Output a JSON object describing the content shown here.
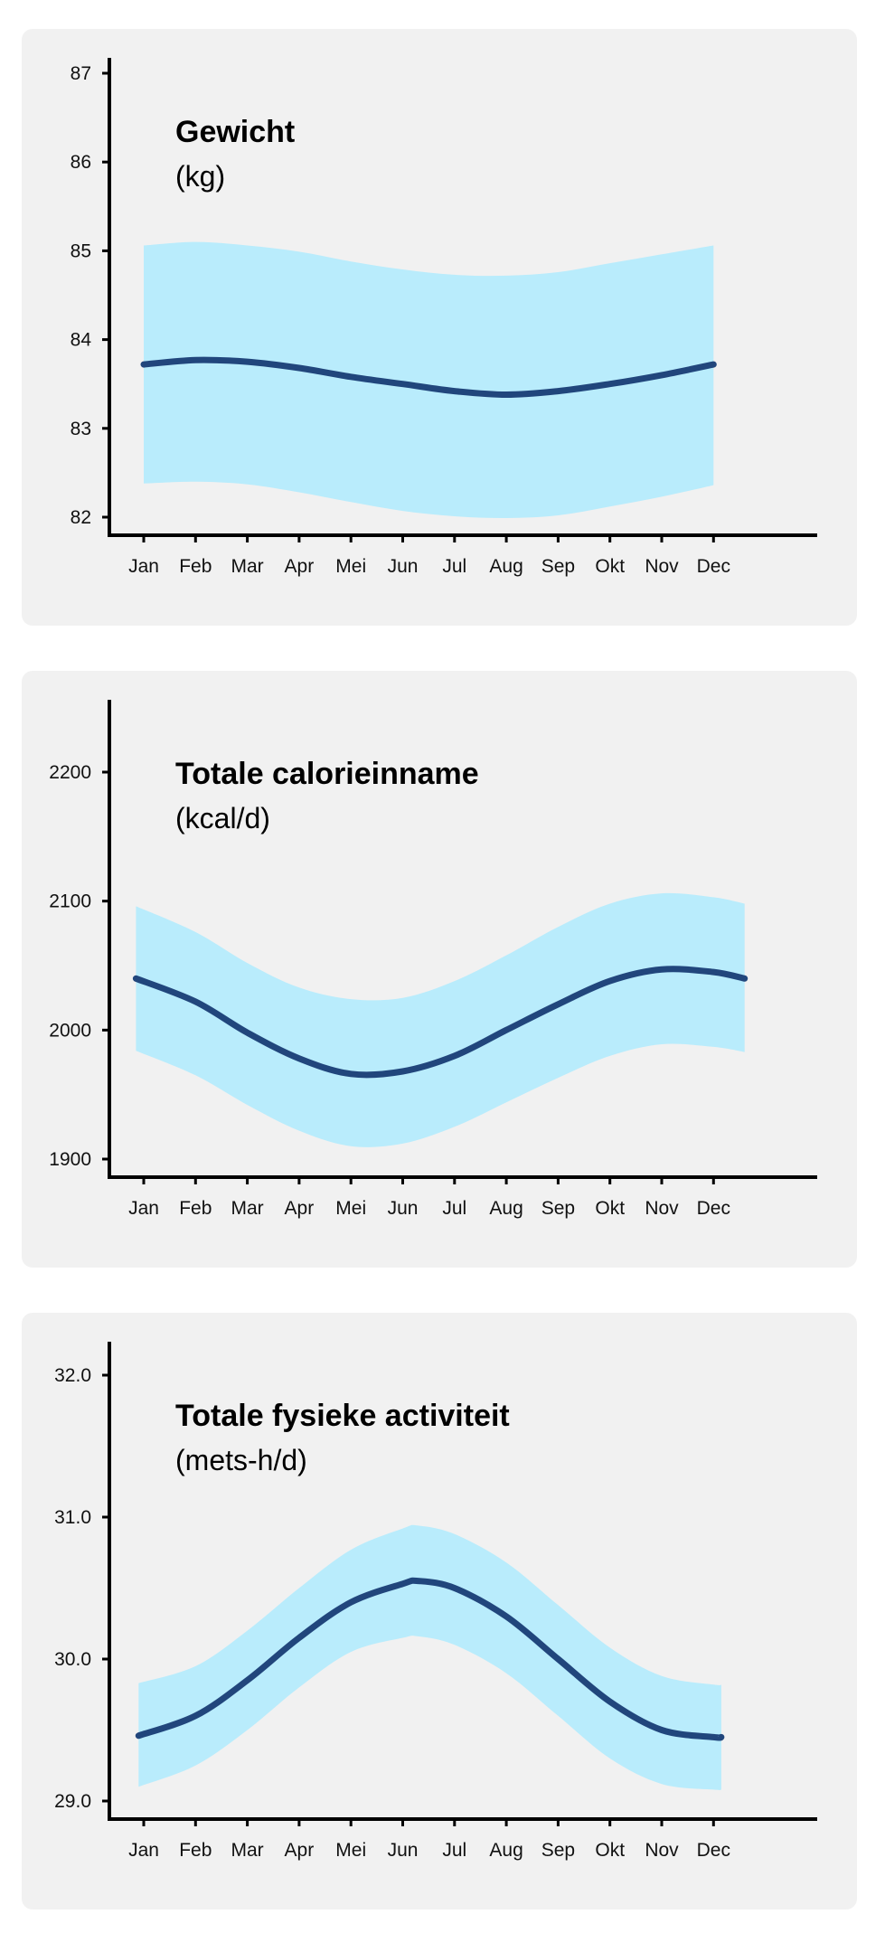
{
  "colors": {
    "panel": "#f1f1f1",
    "band": "#b9ecfc",
    "line": "#21467c",
    "axis": "#000000"
  },
  "chart_data": [
    {
      "type": "line",
      "title": "Gewicht",
      "unit": "(kg)",
      "xlabel": "",
      "ylabel": "",
      "categories": [
        "Jan",
        "Feb",
        "Mar",
        "Apr",
        "Mei",
        "Jun",
        "Jul",
        "Aug",
        "Sep",
        "Okt",
        "Nov",
        "Dec"
      ],
      "yticks": [
        82,
        83,
        84,
        85,
        86,
        87
      ],
      "ytick_labels": [
        "82",
        "83",
        "84",
        "85",
        "86",
        "87"
      ],
      "ylim": [
        82,
        87
      ],
      "x_extent": [
        0,
        11
      ],
      "mean": {
        "x": [
          0,
          1,
          2,
          3,
          4,
          5,
          6,
          7,
          8,
          9,
          10,
          11
        ],
        "y": [
          83.72,
          83.77,
          83.75,
          83.68,
          83.58,
          83.5,
          83.42,
          83.38,
          83.42,
          83.5,
          83.6,
          83.72
        ]
      },
      "band": {
        "x": [
          0,
          1,
          2,
          3,
          4,
          5,
          6,
          7,
          8,
          9,
          10,
          11
        ],
        "upper": [
          85.06,
          85.1,
          85.06,
          84.99,
          84.88,
          84.79,
          84.73,
          84.72,
          84.76,
          84.86,
          84.96,
          85.06
        ],
        "lower": [
          82.38,
          82.4,
          82.37,
          82.28,
          82.17,
          82.07,
          82.01,
          81.99,
          82.02,
          82.12,
          82.23,
          82.36
        ]
      },
      "grid": false,
      "legend": "none"
    },
    {
      "type": "line",
      "title": "Totale calorieinname",
      "unit": "(kcal/d)",
      "xlabel": "",
      "ylabel": "",
      "categories": [
        "Jan",
        "Feb",
        "Mar",
        "Apr",
        "Mei",
        "Jun",
        "Jul",
        "Aug",
        "Sep",
        "Okt",
        "Nov",
        "Dec"
      ],
      "yticks": [
        1900,
        2000,
        2100,
        2200
      ],
      "ytick_labels": [
        "1900",
        "2000",
        "2100",
        "2200"
      ],
      "ylim": [
        1900,
        2245
      ],
      "x_extent": [
        -0.15,
        11.6
      ],
      "mean": {
        "x": [
          -0.15,
          1,
          2,
          3,
          4,
          5,
          6,
          7,
          8,
          9,
          10,
          11,
          11.6
        ],
        "y": [
          2040,
          2022,
          1998,
          1978,
          1966,
          1968,
          1980,
          2000,
          2020,
          2038,
          2047,
          2045,
          2040
        ]
      },
      "band": {
        "x": [
          -0.15,
          1,
          2,
          3,
          4,
          5,
          6,
          7,
          8,
          9,
          10,
          11,
          11.6
        ],
        "upper": [
          2096,
          2076,
          2052,
          2033,
          2024,
          2025,
          2038,
          2058,
          2080,
          2098,
          2106,
          2103,
          2098
        ],
        "lower": [
          1984,
          1965,
          1942,
          1922,
          1910,
          1912,
          1925,
          1944,
          1963,
          1980,
          1989,
          1987,
          1983
        ]
      },
      "grid": false,
      "legend": "none"
    },
    {
      "type": "line",
      "title": "Totale fysieke activiteit",
      "unit": "(mets-h/d)",
      "xlabel": "",
      "ylabel": "",
      "categories": [
        "Jan",
        "Feb",
        "Mar",
        "Apr",
        "Mei",
        "Jun",
        "Jul",
        "Aug",
        "Sep",
        "Okt",
        "Nov",
        "Dec"
      ],
      "yticks": [
        29.0,
        30.0,
        31.0,
        32.0
      ],
      "ytick_labels": [
        "29.0",
        "30.0",
        "31.0",
        "32.0"
      ],
      "ylim": [
        29.0,
        32.0
      ],
      "x_extent": [
        -0.1,
        11.15
      ],
      "mean": {
        "x": [
          -0.1,
          1,
          2,
          3,
          4,
          5,
          5.3,
          6,
          7,
          8,
          9,
          10,
          11,
          11.15
        ],
        "y": [
          29.46,
          29.6,
          29.85,
          30.15,
          30.4,
          30.53,
          30.55,
          30.5,
          30.3,
          30.0,
          29.7,
          29.5,
          29.45,
          29.45
        ]
      },
      "band": {
        "x": [
          -0.1,
          1,
          2,
          3,
          4,
          5,
          5.3,
          6,
          7,
          8,
          9,
          10,
          11,
          11.15
        ],
        "upper": [
          29.83,
          29.95,
          30.2,
          30.5,
          30.77,
          30.92,
          30.94,
          30.88,
          30.68,
          30.38,
          30.08,
          29.88,
          29.82,
          29.82
        ],
        "lower": [
          29.1,
          29.25,
          29.5,
          29.8,
          30.05,
          30.15,
          30.16,
          30.1,
          29.9,
          29.6,
          29.3,
          29.12,
          29.08,
          29.08
        ]
      },
      "grid": false,
      "legend": "none"
    }
  ]
}
